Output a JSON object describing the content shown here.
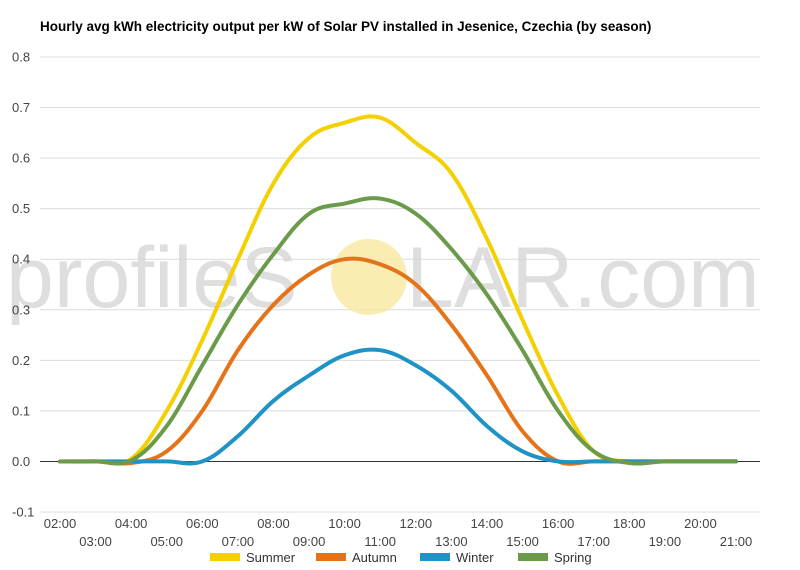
{
  "chart_data": {
    "type": "line",
    "title": "Hourly avg kWh electricity output per kW of Solar PV installed in Jesenice, Czechia (by season)",
    "xlabel": "",
    "ylabel": "",
    "ylim": [
      -0.1,
      0.8
    ],
    "yticks": [
      "-0.1",
      "0.0",
      "0.1",
      "0.2",
      "0.3",
      "0.4",
      "0.5",
      "0.6",
      "0.7",
      "0.8"
    ],
    "xticks_upper": [
      "02:00",
      "04:00",
      "06:00",
      "08:00",
      "10:00",
      "12:00",
      "14:00",
      "16:00",
      "18:00",
      "20:00"
    ],
    "xticks_lower": [
      "03:00",
      "05:00",
      "07:00",
      "09:00",
      "11:00",
      "13:00",
      "15:00",
      "17:00",
      "19:00",
      "21:00"
    ],
    "x": [
      "02:00",
      "03:00",
      "04:00",
      "05:00",
      "06:00",
      "07:00",
      "08:00",
      "09:00",
      "10:00",
      "11:00",
      "12:00",
      "13:00",
      "14:00",
      "15:00",
      "16:00",
      "17:00",
      "18:00",
      "19:00",
      "20:00",
      "21:00"
    ],
    "grid": true,
    "legend_position": "bottom",
    "series": [
      {
        "name": "Summer",
        "color": "#f5d000",
        "values": [
          0,
          0,
          0.005,
          0.1,
          0.24,
          0.4,
          0.55,
          0.64,
          0.67,
          0.68,
          0.63,
          0.57,
          0.44,
          0.28,
          0.13,
          0.02,
          0,
          0,
          0,
          0
        ]
      },
      {
        "name": "Autumn",
        "color": "#e5731a",
        "values": [
          0,
          0,
          -0.003,
          0.02,
          0.1,
          0.22,
          0.31,
          0.37,
          0.4,
          0.39,
          0.35,
          0.27,
          0.17,
          0.06,
          0,
          0,
          0,
          0,
          0,
          0
        ]
      },
      {
        "name": "Winter",
        "color": "#1f93c6",
        "values": [
          0,
          0,
          0,
          0,
          0,
          0.05,
          0.12,
          0.17,
          0.21,
          0.22,
          0.19,
          0.14,
          0.07,
          0.02,
          0,
          0,
          0,
          0,
          0,
          0
        ]
      },
      {
        "name": "Spring",
        "color": "#6a9a4a",
        "values": [
          0,
          0,
          0.002,
          0.07,
          0.19,
          0.31,
          0.41,
          0.49,
          0.51,
          0.52,
          0.49,
          0.42,
          0.33,
          0.22,
          0.1,
          0.02,
          -0.003,
          0,
          0,
          0
        ]
      }
    ]
  },
  "watermark": {
    "left": "profileS",
    "right": "LAR.com",
    "sun_color": "#f7e9a0"
  }
}
